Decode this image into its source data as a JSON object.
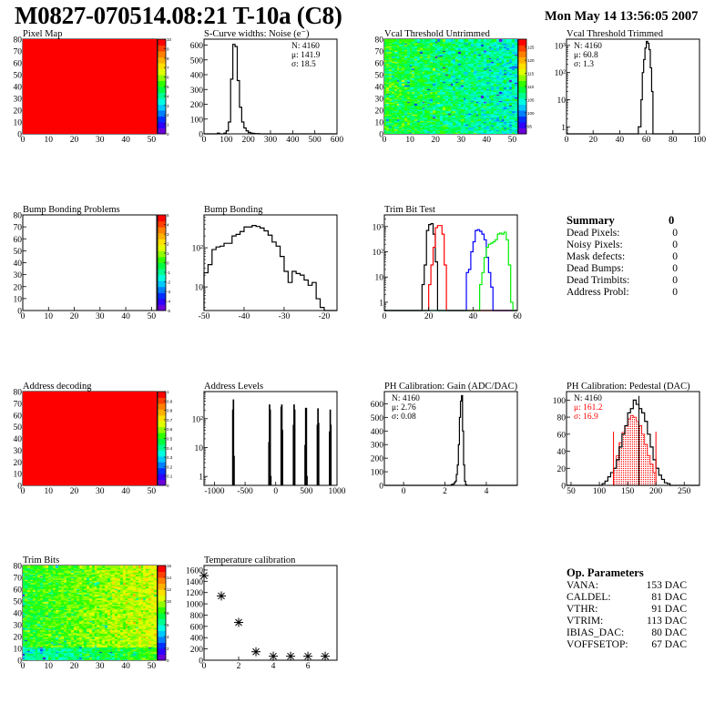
{
  "header": {
    "title": "M0827-070514.08:21 T-10a (C8)",
    "date": "Mon May 14 13:56:05 2007"
  },
  "summary": {
    "title": "Summary",
    "total": "0",
    "rows": [
      {
        "label": "Dead Pixels:",
        "value": "0"
      },
      {
        "label": "Noisy Pixels:",
        "value": "0"
      },
      {
        "label": "Mask defects:",
        "value": "0"
      },
      {
        "label": "Dead Bumps:",
        "value": "0"
      },
      {
        "label": "Dead Trimbits:",
        "value": "0"
      },
      {
        "label": "Address Probl:",
        "value": "0"
      }
    ]
  },
  "op_parameters": {
    "title": "Op. Parameters",
    "rows": [
      {
        "label": "VANA:",
        "value": "153 DAC"
      },
      {
        "label": "CALDEL:",
        "value": "81 DAC"
      },
      {
        "label": "VTHR:",
        "value": "91 DAC"
      },
      {
        "label": "VTRIM:",
        "value": "113 DAC"
      },
      {
        "label": "IBIAS_DAC:",
        "value": "80 DAC"
      },
      {
        "label": "VOFFSETOP:",
        "value": "67 DAC"
      }
    ]
  },
  "palette": [
    "#6a00d8",
    "#3000ff",
    "#0030ff",
    "#0080ff",
    "#00c8ff",
    "#00ffe0",
    "#00ff90",
    "#00ff40",
    "#30ff00",
    "#90ff00",
    "#e0ff00",
    "#ffe000",
    "#ffb000",
    "#ff8000",
    "#ff4000",
    "#ff0000"
  ],
  "chart_data": [
    {
      "id": "pixelmap",
      "type": "heatmap",
      "title": "Pixel Map",
      "xlim": [
        0,
        52
      ],
      "ylim": [
        0,
        80
      ],
      "zlim": [
        0,
        10
      ],
      "xticks": [
        "0",
        "10",
        "20",
        "30",
        "40",
        "50"
      ],
      "yticks": [
        "0",
        "10",
        "20",
        "30",
        "40",
        "50",
        "60",
        "70",
        "80"
      ],
      "zticks": [
        "0",
        "1",
        "2",
        "3",
        "4",
        "5",
        "6",
        "7",
        "8",
        "9",
        "10"
      ],
      "fill": "uniform",
      "value": 10
    },
    {
      "id": "scurve",
      "type": "histogram",
      "title": "S-Curve widths: Noise (e⁻)",
      "xlim": [
        0,
        600
      ],
      "ylim": [
        0,
        640
      ],
      "ylog": false,
      "xticks": [
        "0",
        "100",
        "200",
        "300",
        "400",
        "500",
        "600"
      ],
      "yticks": [
        "0",
        "100",
        "200",
        "300",
        "400",
        "500",
        "600"
      ],
      "stats": {
        "N": "N: 4160",
        "mean": "μ: 141.9",
        "sigma": "σ: 18.5"
      },
      "series": [
        {
          "color": "#000000",
          "bin_start": 60,
          "bin_width": 10,
          "values": [
            5,
            0,
            0,
            5,
            20,
            80,
            370,
            605,
            590,
            360,
            180,
            80,
            40,
            20,
            10,
            5,
            3,
            2,
            2
          ]
        }
      ]
    },
    {
      "id": "vcal_untrimmed",
      "type": "heatmap",
      "title": "Vcal Threshold Untrimmed",
      "xlim": [
        0,
        52
      ],
      "ylim": [
        0,
        80
      ],
      "zlim": [
        92,
        128
      ],
      "xticks": [
        "0",
        "10",
        "20",
        "30",
        "40",
        "50"
      ],
      "yticks": [
        "0",
        "10",
        "20",
        "30",
        "40",
        "50",
        "60",
        "70",
        "80"
      ],
      "zticks": [
        "95",
        "100",
        "105",
        "110",
        "115",
        "120",
        "125"
      ],
      "fill": "noise",
      "mean_left": 110,
      "mean_right": 105,
      "spread": 4
    },
    {
      "id": "vcal_trimmed",
      "type": "histogram",
      "title": "Vcal Threshold Trimmed",
      "xlim": [
        0,
        100
      ],
      "ylim": [
        0.55,
        1700
      ],
      "ylog": true,
      "xticks": [
        "0",
        "20",
        "40",
        "60",
        "80",
        "100"
      ],
      "yticks": [
        "1",
        "10",
        "10²",
        "10³"
      ],
      "stats": {
        "N": "N: 4160",
        "mean": "μ: 60.8",
        "sigma": "σ:  1.3"
      },
      "series": [
        {
          "color": "#000000",
          "bin_start": 54,
          "bin_width": 1,
          "values": [
            1,
            1,
            10,
            100,
            300,
            800,
            1400,
            1200,
            700,
            150,
            20,
            0
          ]
        }
      ]
    },
    {
      "id": "bump_problems",
      "type": "heatmap",
      "title": "Bump Bonding Problems",
      "xlim": [
        0,
        52
      ],
      "ylim": [
        0,
        80
      ],
      "zlim": [
        -5,
        5
      ],
      "xticks": [
        "0",
        "10",
        "20",
        "30",
        "40",
        "50"
      ],
      "yticks": [
        "0",
        "10",
        "20",
        "30",
        "40",
        "50",
        "60",
        "70",
        "80"
      ],
      "zticks": [
        "-5",
        "-4",
        "-3",
        "-2",
        "-1",
        "0",
        "1",
        "2",
        "3",
        "4",
        "5"
      ],
      "fill": "empty"
    },
    {
      "id": "bump_bonding",
      "type": "histogram",
      "title": "Bump Bonding",
      "xlim": [
        -50,
        -16.8
      ],
      "ylim": [
        2.5,
        690
      ],
      "ylog": true,
      "xticks": [
        "-50",
        "-40",
        "-30",
        "-20"
      ],
      "yticks": [
        "10",
        "10²"
      ],
      "series": [
        {
          "color": "#000000",
          "bin_start": -50,
          "bin_width": 1,
          "values": [
            23,
            37,
            90,
            105,
            110,
            130,
            130,
            200,
            220,
            260,
            340,
            340,
            370,
            350,
            320,
            270,
            210,
            140,
            110,
            60,
            25,
            13,
            25,
            22,
            20,
            15,
            11,
            13,
            5,
            3
          ]
        }
      ]
    },
    {
      "id": "trim_bit_test",
      "type": "histogram",
      "title": "Trim Bit Test",
      "xlim": [
        0,
        60
      ],
      "ylim": [
        0.47,
        2900
      ],
      "ylog": true,
      "xticks": [
        "0",
        "20",
        "40",
        "60"
      ],
      "yticks": [
        "1",
        "10",
        "10²",
        "10³"
      ],
      "series": [
        {
          "color": "#000000",
          "bin_start": 16,
          "bin_width": 1,
          "values": [
            0,
            5,
            30,
            700,
            1200,
            1300,
            500,
            40,
            0
          ]
        },
        {
          "color": "#ff0000",
          "bin_start": 20,
          "bin_width": 1,
          "values": [
            5,
            30,
            150,
            900,
            1100,
            1100,
            500,
            30,
            0
          ]
        },
        {
          "color": "#0000ff",
          "bin_start": 37,
          "bin_width": 1,
          "values": [
            15,
            20,
            100,
            250,
            700,
            750,
            650,
            500,
            300,
            60,
            15,
            4,
            0
          ]
        },
        {
          "color": "#00ee00",
          "bin_start": 43,
          "bin_width": 1,
          "values": [
            5,
            15,
            60,
            150,
            200,
            220,
            250,
            300,
            500,
            550,
            500,
            600,
            300,
            30,
            1,
            0
          ]
        }
      ]
    },
    {
      "id": "address_decoding",
      "type": "heatmap",
      "title": "Address decoding",
      "xlim": [
        0,
        52
      ],
      "ylim": [
        0,
        80
      ],
      "zlim": [
        0,
        1
      ],
      "xticks": [
        "0",
        "10",
        "20",
        "30",
        "40",
        "50"
      ],
      "yticks": [
        "0",
        "10",
        "20",
        "30",
        "40",
        "50",
        "60",
        "70",
        "80"
      ],
      "zticks": [
        "0",
        "0.1",
        "0.2",
        "0.3",
        "0.4",
        "0.5",
        "0.6",
        "0.7",
        "0.8",
        "0.9",
        "1"
      ],
      "fill": "uniform",
      "value": 1
    },
    {
      "id": "address_levels",
      "type": "spikes",
      "title": "Address Levels",
      "xlim": [
        -1170,
        1000
      ],
      "ylim": [
        0.49,
        870
      ],
      "ylog": true,
      "xticks": [
        "-1000",
        "-500",
        "0",
        "500",
        "1000"
      ],
      "yticks": [
        "1",
        "10",
        "10²"
      ],
      "bin_width": 10,
      "points": [
        [
          -700,
          200
        ],
        [
          -690,
          450
        ],
        [
          -680,
          5
        ],
        [
          -110,
          15
        ],
        [
          -100,
          300
        ],
        [
          -90,
          200
        ],
        [
          -80,
          1
        ],
        [
          90,
          250
        ],
        [
          100,
          300
        ],
        [
          110,
          40
        ],
        [
          290,
          60
        ],
        [
          300,
          300
        ],
        [
          310,
          200
        ],
        [
          480,
          12
        ],
        [
          490,
          230
        ],
        [
          500,
          230
        ],
        [
          510,
          1
        ],
        [
          680,
          60
        ],
        [
          690,
          220
        ],
        [
          700,
          70
        ],
        [
          880,
          35
        ],
        [
          890,
          200
        ],
        [
          900,
          60
        ]
      ]
    },
    {
      "id": "ph_gain",
      "type": "histogram",
      "title": "PH Calibration: Gain (ADC/DAC)",
      "xlim": [
        -0.93,
        5.5
      ],
      "ylim": [
        0,
        690
      ],
      "ylog": false,
      "xticks": [
        "0",
        "2",
        "4"
      ],
      "yticks": [
        "0",
        "100",
        "200",
        "300",
        "400",
        "500",
        "600"
      ],
      "stats": {
        "N": "N: 4160",
        "mean": "μ: 2.76",
        "sigma": "σ: 0.08"
      },
      "series": [
        {
          "color": "#000000",
          "bin_start": 2.3,
          "bin_width": 0.05,
          "values": [
            5,
            8,
            10,
            20,
            30,
            80,
            150,
            300,
            500,
            620,
            660,
            400,
            150,
            30,
            5
          ]
        }
      ]
    },
    {
      "id": "ph_pedestal",
      "type": "histogram",
      "title": "PH Calibration: Pedestal (DAC)",
      "xlim": [
        42,
        277
      ],
      "ylim": [
        0,
        110
      ],
      "ylog": false,
      "xticks": [
        "50",
        "100",
        "150",
        "200",
        "250"
      ],
      "yticks": [
        "0",
        "20",
        "40",
        "60",
        "80",
        "100"
      ],
      "stats": {
        "N": "N: 4160",
        "mean": "μ: 161.2",
        "sigma": "σ: 16.9",
        "fit_color": "#ff0000"
      },
      "fit_range": [
        125,
        200
      ],
      "series": [
        {
          "color": "#ff0000",
          "filled": true,
          "bin_start": 125,
          "bin_width": 5,
          "values": [
            20,
            35,
            50,
            62,
            70,
            78,
            82,
            80,
            75,
            70,
            60,
            48,
            35,
            25,
            15
          ]
        },
        {
          "color": "#000000",
          "bin_start": 105,
          "bin_width": 5,
          "values": [
            2,
            5,
            10,
            15,
            20,
            30,
            45,
            60,
            70,
            85,
            90,
            100,
            95,
            90,
            85,
            75,
            60,
            45,
            30,
            20,
            12,
            7,
            3,
            2
          ]
        }
      ]
    },
    {
      "id": "trim_bits",
      "type": "heatmap",
      "title": "Trim Bits",
      "xlim": [
        0,
        52
      ],
      "ylim": [
        0,
        80
      ],
      "zlim": [
        0,
        16
      ],
      "xticks": [
        "0",
        "10",
        "20",
        "30",
        "40",
        "50"
      ],
      "yticks": [
        "0",
        "10",
        "20",
        "30",
        "40",
        "50",
        "60",
        "70",
        "80"
      ],
      "zticks": [
        "0",
        "2",
        "4",
        "6",
        "8",
        "10",
        "12",
        "14",
        "16"
      ],
      "fill": "noise",
      "mean_left": 8,
      "mean_right": 10.5,
      "spread": 1.5
    },
    {
      "id": "temperature",
      "type": "scatter",
      "title": "Temperature calibration",
      "xlim": [
        0,
        7.68
      ],
      "ylim": [
        0,
        1680
      ],
      "xticks": [
        "0",
        "2",
        "4",
        "6"
      ],
      "yticks": [
        "0",
        "200",
        "400",
        "600",
        "800",
        "1000",
        "1200",
        "1400",
        "1600"
      ],
      "points": [
        [
          0,
          1500
        ],
        [
          1,
          1140
        ],
        [
          2,
          670
        ],
        [
          3,
          150
        ],
        [
          4,
          70
        ],
        [
          5,
          70
        ],
        [
          6,
          70
        ],
        [
          7,
          70
        ]
      ]
    }
  ]
}
